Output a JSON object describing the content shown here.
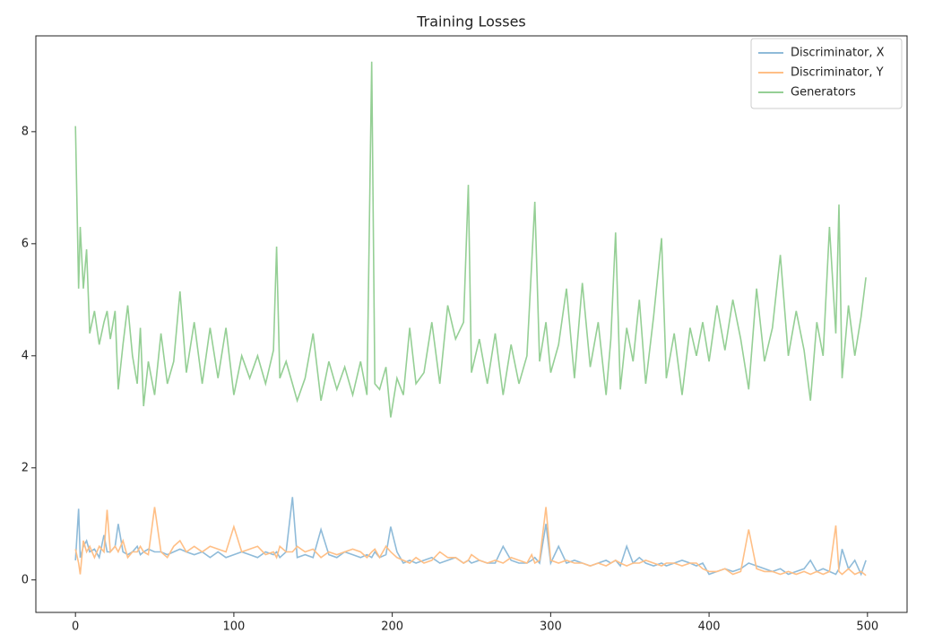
{
  "chart_data": {
    "type": "line",
    "title": "Training Losses",
    "x": [
      0,
      2,
      3,
      5,
      7,
      9,
      12,
      15,
      18,
      20,
      22,
      25,
      27,
      30,
      33,
      36,
      39,
      41,
      43,
      46,
      50,
      54,
      58,
      62,
      66,
      70,
      75,
      80,
      85,
      90,
      95,
      100,
      105,
      110,
      115,
      120,
      125,
      127,
      129,
      133,
      137,
      140,
      145,
      150,
      155,
      160,
      165,
      170,
      175,
      180,
      184,
      187,
      189,
      192,
      196,
      199,
      203,
      207,
      211,
      215,
      220,
      225,
      230,
      235,
      240,
      245,
      248,
      250,
      255,
      260,
      265,
      270,
      275,
      280,
      285,
      288,
      290,
      293,
      297,
      300,
      305,
      310,
      315,
      320,
      325,
      330,
      335,
      338,
      341,
      344,
      348,
      352,
      356,
      360,
      365,
      370,
      373,
      378,
      383,
      388,
      392,
      396,
      400,
      405,
      410,
      415,
      420,
      425,
      430,
      435,
      440,
      445,
      450,
      455,
      460,
      464,
      468,
      472,
      476,
      480,
      482,
      484,
      488,
      492,
      496,
      499
    ],
    "series": [
      {
        "name": "Discriminator, X",
        "color": "#8fbbd9",
        "values": [
          0.35,
          1.27,
          0.4,
          0.6,
          0.7,
          0.5,
          0.55,
          0.4,
          0.8,
          0.5,
          0.5,
          0.6,
          1.0,
          0.5,
          0.45,
          0.5,
          0.6,
          0.45,
          0.5,
          0.55,
          0.5,
          0.5,
          0.45,
          0.5,
          0.55,
          0.5,
          0.45,
          0.5,
          0.4,
          0.5,
          0.4,
          0.45,
          0.5,
          0.45,
          0.4,
          0.5,
          0.45,
          0.5,
          0.4,
          0.5,
          1.48,
          0.4,
          0.45,
          0.4,
          0.9,
          0.45,
          0.4,
          0.5,
          0.45,
          0.4,
          0.45,
          0.4,
          0.5,
          0.4,
          0.45,
          0.95,
          0.5,
          0.3,
          0.35,
          0.3,
          0.35,
          0.4,
          0.3,
          0.35,
          0.4,
          0.3,
          0.35,
          0.3,
          0.35,
          0.3,
          0.3,
          0.6,
          0.35,
          0.3,
          0.3,
          0.35,
          0.4,
          0.3,
          1.0,
          0.3,
          0.6,
          0.3,
          0.35,
          0.3,
          0.25,
          0.3,
          0.35,
          0.3,
          0.35,
          0.25,
          0.6,
          0.3,
          0.4,
          0.3,
          0.25,
          0.3,
          0.25,
          0.3,
          0.35,
          0.3,
          0.25,
          0.3,
          0.1,
          0.15,
          0.2,
          0.15,
          0.2,
          0.3,
          0.25,
          0.2,
          0.15,
          0.2,
          0.1,
          0.15,
          0.2,
          0.35,
          0.15,
          0.2,
          0.15,
          0.1,
          0.2,
          0.55,
          0.2,
          0.35,
          0.1,
          0.35
        ]
      },
      {
        "name": "Discriminator, Y",
        "color": "#ffbf86",
        "values": [
          0.55,
          0.3,
          0.1,
          0.7,
          0.5,
          0.6,
          0.4,
          0.6,
          0.5,
          1.25,
          0.5,
          0.6,
          0.5,
          0.7,
          0.4,
          0.5,
          0.5,
          0.6,
          0.5,
          0.45,
          1.3,
          0.5,
          0.4,
          0.6,
          0.7,
          0.5,
          0.6,
          0.5,
          0.6,
          0.55,
          0.5,
          0.95,
          0.5,
          0.55,
          0.6,
          0.45,
          0.5,
          0.4,
          0.6,
          0.5,
          0.5,
          0.6,
          0.5,
          0.55,
          0.4,
          0.5,
          0.45,
          0.5,
          0.55,
          0.5,
          0.4,
          0.5,
          0.55,
          0.4,
          0.6,
          0.5,
          0.4,
          0.35,
          0.3,
          0.4,
          0.3,
          0.35,
          0.5,
          0.4,
          0.4,
          0.3,
          0.35,
          0.45,
          0.35,
          0.3,
          0.35,
          0.3,
          0.4,
          0.35,
          0.3,
          0.45,
          0.3,
          0.35,
          1.3,
          0.35,
          0.3,
          0.35,
          0.3,
          0.3,
          0.25,
          0.3,
          0.25,
          0.3,
          0.35,
          0.3,
          0.25,
          0.3,
          0.3,
          0.35,
          0.3,
          0.25,
          0.3,
          0.3,
          0.25,
          0.3,
          0.3,
          0.2,
          0.15,
          0.15,
          0.2,
          0.1,
          0.15,
          0.9,
          0.2,
          0.15,
          0.15,
          0.1,
          0.15,
          0.1,
          0.15,
          0.1,
          0.15,
          0.1,
          0.15,
          0.97,
          0.15,
          0.1,
          0.2,
          0.1,
          0.15,
          0.08
        ]
      },
      {
        "name": "Generators",
        "color": "#95cf95",
        "values": [
          8.1,
          5.2,
          6.3,
          5.2,
          5.9,
          4.4,
          4.8,
          4.2,
          4.6,
          4.8,
          4.3,
          4.8,
          3.4,
          4.2,
          4.9,
          4.0,
          3.5,
          4.5,
          3.1,
          3.9,
          3.3,
          4.4,
          3.5,
          3.9,
          5.15,
          3.7,
          4.6,
          3.5,
          4.5,
          3.6,
          4.5,
          3.3,
          4.0,
          3.6,
          4.0,
          3.5,
          4.1,
          5.95,
          3.6,
          3.9,
          3.5,
          3.2,
          3.6,
          4.4,
          3.2,
          3.9,
          3.4,
          3.8,
          3.3,
          3.9,
          3.3,
          9.25,
          3.5,
          3.4,
          3.8,
          2.9,
          3.6,
          3.3,
          4.5,
          3.5,
          3.7,
          4.6,
          3.5,
          4.9,
          4.3,
          4.6,
          7.05,
          3.7,
          4.3,
          3.5,
          4.4,
          3.3,
          4.2,
          3.5,
          4.0,
          5.65,
          6.75,
          3.9,
          4.6,
          3.7,
          4.2,
          5.2,
          3.6,
          5.3,
          3.8,
          4.6,
          3.3,
          4.3,
          6.2,
          3.4,
          4.5,
          3.9,
          5.0,
          3.5,
          4.7,
          6.1,
          3.6,
          4.4,
          3.3,
          4.5,
          4.0,
          4.6,
          3.9,
          4.9,
          4.1,
          5.0,
          4.3,
          3.4,
          5.2,
          3.9,
          4.5,
          5.8,
          4.0,
          4.8,
          4.1,
          3.2,
          4.6,
          4.0,
          6.3,
          4.4,
          6.7,
          3.6,
          4.9,
          4.0,
          4.7,
          5.4
        ]
      }
    ],
    "xlim": [
      -25,
      525
    ],
    "ylim": [
      -0.58,
      9.71
    ],
    "xticks": [
      0,
      100,
      200,
      300,
      400,
      500
    ],
    "yticks": [
      0,
      2,
      4,
      6,
      8
    ],
    "legend": "upper right"
  }
}
